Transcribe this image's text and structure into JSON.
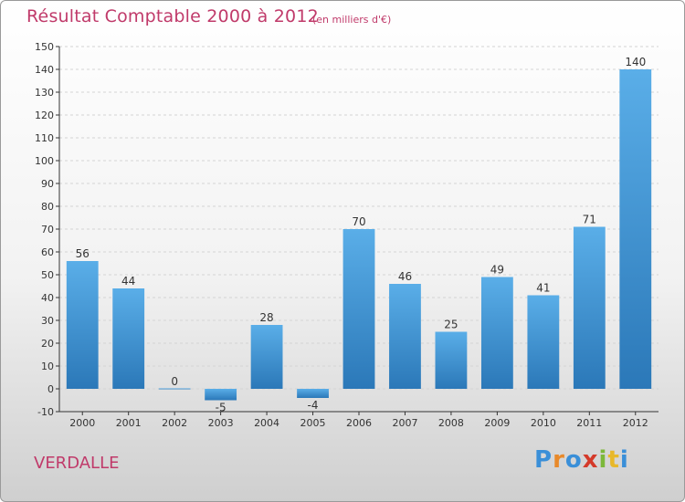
{
  "header": {
    "title": "Résultat Comptable 2000 à 2012",
    "subtitle": "(en milliers d'€)"
  },
  "footer": {
    "commune": "VERDALLE",
    "logo_letters": [
      {
        "char": "P",
        "color": "#3a8fd8"
      },
      {
        "char": "r",
        "color": "#e8892a"
      },
      {
        "char": "o",
        "color": "#3a8fd8"
      },
      {
        "char": "x",
        "color": "#d43a2a"
      },
      {
        "char": "i",
        "color": "#7cb83a"
      },
      {
        "char": "t",
        "color": "#e8b82a"
      },
      {
        "char": "i",
        "color": "#3a8fd8"
      }
    ]
  },
  "colors": {
    "bar_top": "#5aaee8",
    "bar_bottom": "#2b78b8",
    "axis": "#333333",
    "grid": "#d4d4d4",
    "text_accent": "#c03a6a"
  },
  "chart_data": {
    "type": "bar",
    "title": "Résultat Comptable 2000 à 2012",
    "subtitle": "(en milliers d'€)",
    "xlabel": "",
    "ylabel": "",
    "categories": [
      "2000",
      "2001",
      "2002",
      "2003",
      "2004",
      "2005",
      "2006",
      "2007",
      "2008",
      "2009",
      "2010",
      "2011",
      "2012"
    ],
    "values": [
      56,
      44,
      0,
      -5,
      28,
      -4,
      70,
      46,
      25,
      49,
      41,
      71,
      140
    ],
    "data_labels": [
      "56",
      "44",
      "0",
      "-5",
      "28",
      "-4",
      "70",
      "46",
      "25",
      "49",
      "41",
      "71",
      "140"
    ],
    "ylim": [
      -10,
      150
    ],
    "yticks": [
      -10,
      0,
      10,
      20,
      30,
      40,
      50,
      60,
      70,
      80,
      90,
      100,
      110,
      120,
      130,
      140,
      150
    ],
    "grid": true,
    "legend": "none"
  }
}
